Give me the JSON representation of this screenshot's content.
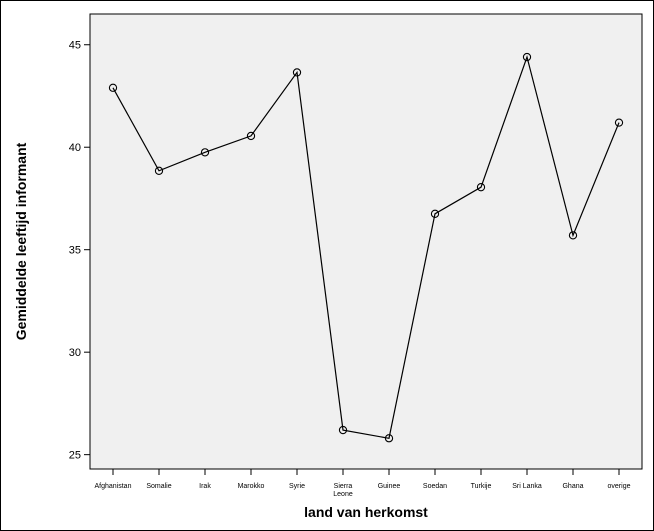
{
  "chart_data": {
    "type": "line",
    "categories": [
      "Afghanistan",
      "Somalie",
      "Irak",
      "Marokko",
      "Syrie",
      "Sierra Leone",
      "Guinee",
      "Soedan",
      "Turkije",
      "Sri Lanka",
      "Ghana",
      "overige"
    ],
    "category_label_lines": [
      [
        "Afghanistan"
      ],
      [
        "Somalie"
      ],
      [
        "Irak"
      ],
      [
        "Marokko"
      ],
      [
        "Syrie"
      ],
      [
        "Sierra",
        "Leone"
      ],
      [
        "Guinee"
      ],
      [
        "Soedan"
      ],
      [
        "Turkije"
      ],
      [
        "Sri Lanka"
      ],
      [
        "Ghana"
      ],
      [
        "overige"
      ]
    ],
    "series": [
      {
        "values": [
          42.9,
          38.85,
          39.75,
          40.55,
          43.65,
          26.2,
          25.8,
          36.75,
          38.05,
          44.4,
          35.7,
          41.2
        ]
      }
    ],
    "xlabel": "land van herkomst",
    "ylabel": "Gemiddelde leeftijd informant",
    "ylim": [
      24.3,
      46.5
    ],
    "yticks": [
      25,
      30,
      35,
      40,
      45
    ],
    "grid": false,
    "plot_background": "#f0f0f0",
    "line_color": "#000000",
    "marker": "open-circle"
  }
}
